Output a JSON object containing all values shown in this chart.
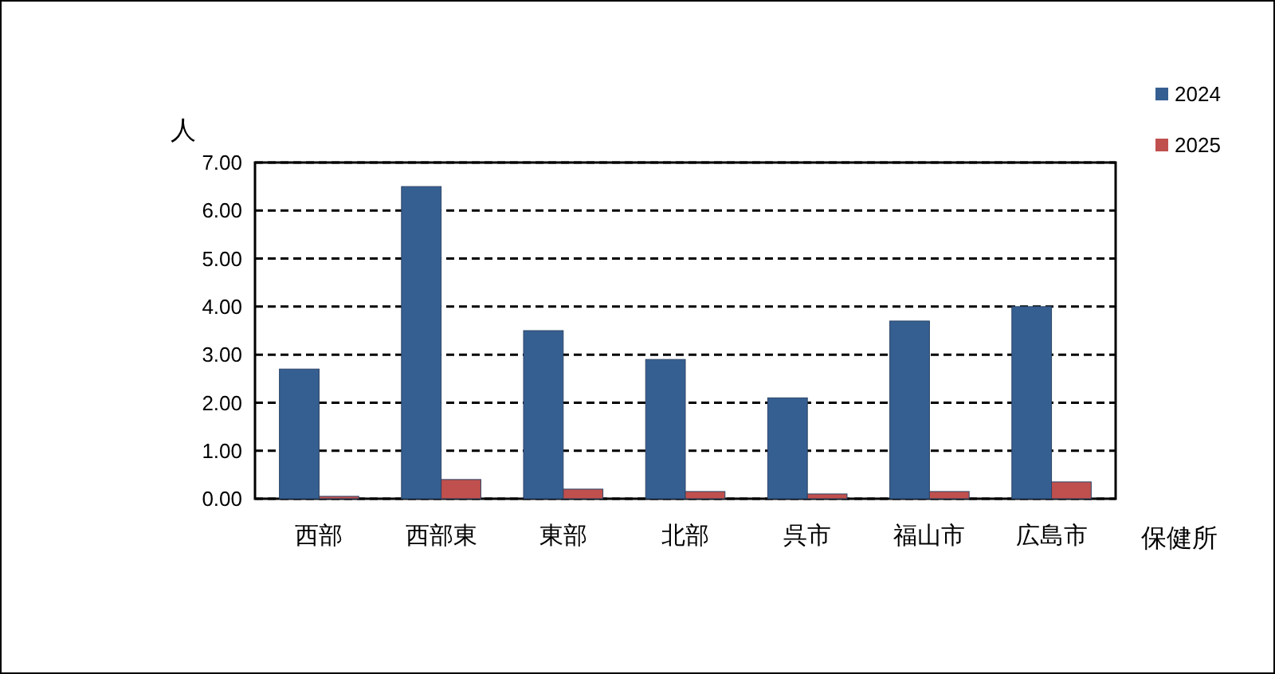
{
  "chart_data": {
    "type": "bar",
    "xlabel": "保健所",
    "ylabel": "人",
    "categories": [
      "西部",
      "西部東",
      "東部",
      "北部",
      "呉市",
      "福山市",
      "広島市"
    ],
    "series": [
      {
        "name": "2024",
        "color": "#365f91",
        "values": [
          2.7,
          6.5,
          3.5,
          2.9,
          2.1,
          3.7,
          4.0
        ]
      },
      {
        "name": "2025",
        "color": "#c0504d",
        "values": [
          0.05,
          0.4,
          0.2,
          0.15,
          0.1,
          0.15,
          0.35
        ]
      }
    ],
    "ylim": [
      0,
      7
    ],
    "yticks": [
      {
        "value": 0,
        "label": "0.00"
      },
      {
        "value": 1,
        "label": "1.00"
      },
      {
        "value": 2,
        "label": "2.00"
      },
      {
        "value": 3,
        "label": "3.00"
      },
      {
        "value": 4,
        "label": "4.00"
      },
      {
        "value": 5,
        "label": "5.00"
      },
      {
        "value": 6,
        "label": "6.00"
      },
      {
        "value": 7,
        "label": "7.00"
      }
    ],
    "grid": "y",
    "legend": "top right"
  }
}
